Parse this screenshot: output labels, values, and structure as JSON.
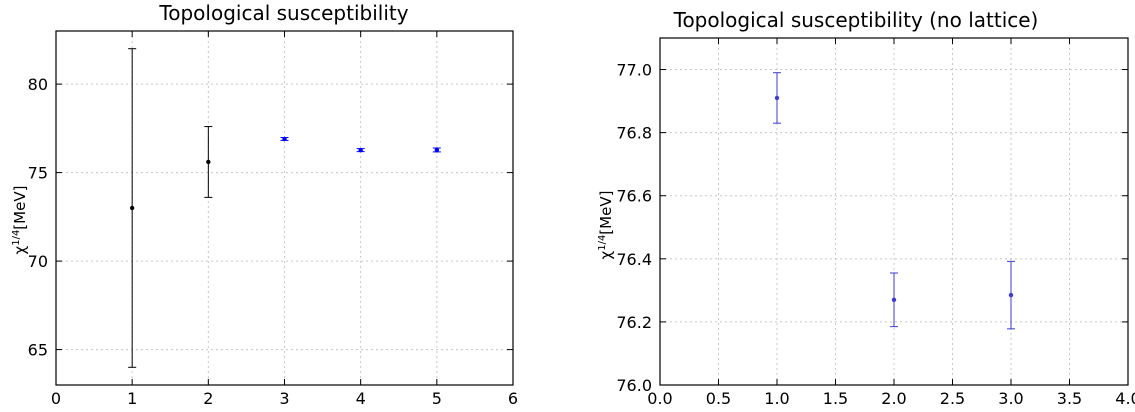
{
  "chart_data": [
    {
      "type": "scatter",
      "title": "Topological susceptibility",
      "xlabel": "",
      "ylabel": "χ1/4[MeV]",
      "ylabel_base": "χ",
      "ylabel_sup": "1/4",
      "ylabel_unit": "[MeV]",
      "xlim": [
        0,
        6
      ],
      "ylim": [
        63,
        83
      ],
      "xticks": [
        0,
        1,
        2,
        3,
        4,
        5,
        6
      ],
      "xtick_labels": [
        "0",
        "1",
        "2",
        "3",
        "4",
        "5",
        "6"
      ],
      "yticks": [
        65,
        70,
        75,
        80
      ],
      "ytick_labels": [
        "65",
        "70",
        "75",
        "80"
      ],
      "grid": true,
      "series": [
        {
          "color": "#000000",
          "points": [
            {
              "x": 1,
              "y": 73.0,
              "err": 9.0
            },
            {
              "x": 2,
              "y": 75.6,
              "err": 2.0
            }
          ]
        },
        {
          "color": "#0000ff",
          "points": [
            {
              "x": 3,
              "y": 76.9,
              "err": 0.08
            },
            {
              "x": 4,
              "y": 76.27,
              "err": 0.085
            },
            {
              "x": 5,
              "y": 76.28,
              "err": 0.11
            }
          ]
        }
      ]
    },
    {
      "type": "scatter",
      "title": "Topological susceptibility (no lattice)",
      "xlabel": "",
      "ylabel": "χ1/4[MeV]",
      "ylabel_base": "χ",
      "ylabel_sup": "1/4",
      "ylabel_unit": "[MeV]",
      "xlim": [
        0,
        4
      ],
      "ylim": [
        76.0,
        77.1
      ],
      "xticks": [
        0,
        0.5,
        1,
        1.5,
        2,
        2.5,
        3,
        3.5,
        4
      ],
      "xtick_labels": [
        "0.0",
        "0.5",
        "1.0",
        "1.5",
        "2.0",
        "2.5",
        "3.0",
        "3.5",
        "4.0"
      ],
      "yticks": [
        76.0,
        76.2,
        76.4,
        76.6,
        76.8,
        77.0
      ],
      "ytick_labels": [
        "76.0",
        "76.2",
        "76.4",
        "76.6",
        "76.8",
        "77.0"
      ],
      "grid": true,
      "series": [
        {
          "color": "#3b3bd6",
          "points": [
            {
              "x": 1,
              "y": 76.91,
              "err": 0.08
            },
            {
              "x": 2,
              "y": 76.27,
              "err": 0.085
            },
            {
              "x": 3,
              "y": 76.285,
              "err": 0.107
            }
          ]
        }
      ]
    }
  ]
}
